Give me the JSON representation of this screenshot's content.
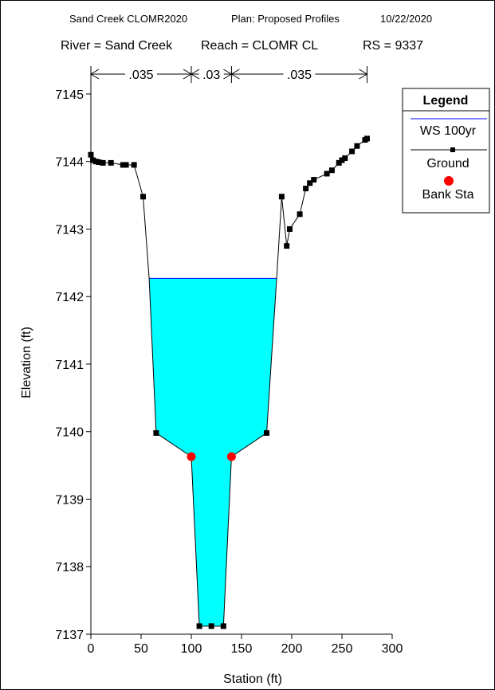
{
  "chart_data": {
    "type": "line",
    "header": {
      "line1": [
        "Sand Creek CLOMR2020",
        "Plan: Proposed Profiles",
        "10/22/2020"
      ],
      "line2": [
        "River = Sand Creek",
        "Reach = CLOMR CL",
        "RS = 9337"
      ]
    },
    "manning": [
      {
        "label": ".035",
        "from": 0,
        "to": 100
      },
      {
        "label": ".03",
        "from": 100,
        "to": 140
      },
      {
        "label": ".035",
        "from": 140,
        "to": 275
      }
    ],
    "xlabel": "Station (ft)",
    "ylabel": "Elevation (ft)",
    "xlim": [
      0,
      300
    ],
    "ylim": [
      7137,
      7145.2
    ],
    "xticks": [
      0,
      50,
      100,
      150,
      200,
      250,
      300
    ],
    "yticks": [
      7137,
      7138,
      7139,
      7140,
      7141,
      7142,
      7143,
      7144,
      7145
    ],
    "legend": {
      "title": "Legend",
      "position": "top-right",
      "items": [
        {
          "label": "WS 100yr",
          "color": "#0000ff",
          "kind": "line"
        },
        {
          "label": "Ground",
          "color": "#000000",
          "kind": "line-marker"
        },
        {
          "label": "Bank Sta",
          "color": "#ff0000",
          "kind": "dot"
        }
      ]
    },
    "water_surface": {
      "name": "WS 100yr",
      "elevation": 7142.27,
      "fill": "#00ffff",
      "line_color": "#0000ff"
    },
    "ground": {
      "name": "Ground",
      "x": [
        0,
        2,
        5,
        8,
        12,
        20,
        32,
        35,
        43,
        52,
        58,
        65,
        100,
        108,
        120,
        132,
        140,
        175,
        185,
        190,
        195,
        198,
        208,
        214,
        218,
        222,
        235,
        240,
        247,
        250,
        253,
        260,
        265,
        273,
        275
      ],
      "y": [
        7144.1,
        7144.02,
        7144.0,
        7143.99,
        7143.98,
        7143.98,
        7143.95,
        7143.95,
        7143.95,
        7143.48,
        7142.27,
        7139.98,
        7139.63,
        7137.12,
        7137.12,
        7137.12,
        7139.63,
        7139.98,
        7142.27,
        7143.48,
        7142.75,
        7143.0,
        7143.22,
        7143.6,
        7143.68,
        7143.73,
        7143.82,
        7143.87,
        7143.98,
        7144.02,
        7144.05,
        7144.15,
        7144.23,
        7144.32,
        7144.34
      ]
    },
    "marker_x": [
      0,
      2,
      5,
      8,
      12,
      20,
      32,
      35,
      43,
      52,
      65,
      108,
      120,
      132,
      175,
      190,
      195,
      198,
      208,
      214,
      218,
      222,
      235,
      240,
      247,
      250,
      253,
      260,
      265,
      273,
      275
    ],
    "bank_stations": {
      "name": "Bank Sta",
      "x": [
        100,
        140
      ],
      "y": [
        7139.63,
        7139.63
      ],
      "color": "#ff0000"
    }
  }
}
